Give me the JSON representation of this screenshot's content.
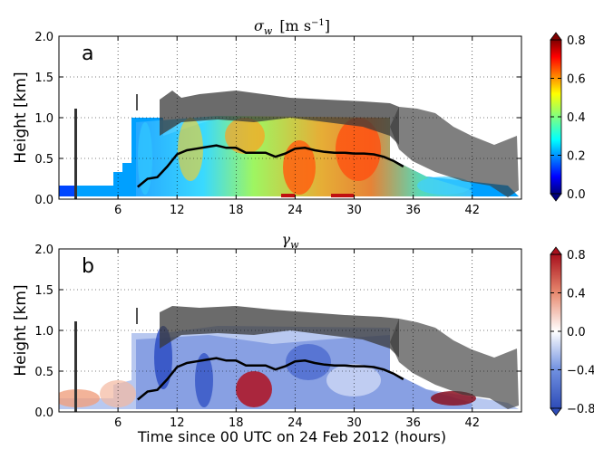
{
  "figure": {
    "xlabel": "Time since 00 UTC on 24 Feb 2012 (hours)"
  },
  "chart_data": [
    {
      "type": "heatmap",
      "panel_label": "a",
      "title_symbol": "σ",
      "title_sub": "w",
      "title_unit": "[m s",
      "title_unit_exp": "−1",
      "title_unit_close": "]",
      "xlabel": "",
      "ylabel": "Height [km]",
      "xlim": [
        0,
        47
      ],
      "ylim": [
        0,
        2
      ],
      "xticks": [
        6,
        12,
        18,
        24,
        30,
        36,
        42
      ],
      "yticks": [
        0.0,
        0.5,
        1.0,
        1.5,
        2.0
      ],
      "grid": true,
      "colormap": "jet",
      "colorbar": {
        "ticks": [
          "0.0",
          "0.2",
          "0.4",
          "0.6",
          "0.8"
        ],
        "range": [
          0,
          0.8
        ],
        "colors": [
          "#00007f",
          "#0000ff",
          "#0080ff",
          "#00ffff",
          "#80ff80",
          "#ffff00",
          "#ff8000",
          "#ff0000",
          "#7f0000"
        ]
      },
      "boundary_layer_height": {
        "x": [
          8,
          9,
          10,
          11,
          12,
          13,
          14,
          15,
          16,
          17,
          18,
          19,
          20,
          21,
          22,
          23,
          24,
          25,
          26,
          27,
          28,
          29,
          30,
          31,
          32,
          33,
          34,
          35
        ],
        "y": [
          0.15,
          0.25,
          0.27,
          0.4,
          0.55,
          0.6,
          0.62,
          0.64,
          0.66,
          0.63,
          0.63,
          0.57,
          0.57,
          0.57,
          0.52,
          0.56,
          0.62,
          0.63,
          0.6,
          0.58,
          0.57,
          0.57,
          0.56,
          0.56,
          0.55,
          0.52,
          0.47,
          0.4
        ]
      },
      "cloud_base": {
        "x": [
          10,
          12,
          14,
          16,
          18,
          20,
          22,
          24,
          26,
          28,
          30,
          32,
          34,
          36,
          38,
          40,
          42,
          44,
          46
        ],
        "y": [
          1.1,
          1.15,
          1.2,
          1.15,
          1.15,
          1.1,
          1.05,
          1.05,
          1.0,
          1.0,
          1.0,
          1.0,
          1.05,
          0.75,
          0.55,
          0.45,
          0.35,
          0.25,
          0.15
        ]
      }
    },
    {
      "type": "heatmap",
      "panel_label": "b",
      "title_symbol": "γ",
      "title_sub": "w",
      "xlabel": "Time since 00 UTC on 24 Feb 2012 (hours)",
      "ylabel": "Height [km]",
      "xlim": [
        0,
        47
      ],
      "ylim": [
        0,
        2
      ],
      "xticks": [
        6,
        12,
        18,
        24,
        30,
        36,
        42
      ],
      "yticks": [
        0.0,
        0.5,
        1.0,
        1.5,
        2.0
      ],
      "grid": true,
      "colormap": "RdBu_r",
      "colorbar": {
        "ticks": [
          "0.8",
          "0.4",
          "0.0",
          "−0.4",
          "−0.8"
        ],
        "range": [
          -0.8,
          0.8
        ],
        "colors": [
          "#2e4cb8",
          "#4a6fd8",
          "#9bb5f0",
          "#ffffff",
          "#f5b9a0",
          "#e0684f",
          "#a8101c"
        ]
      },
      "boundary_layer_height": {
        "x": [
          8,
          9,
          10,
          11,
          12,
          13,
          14,
          15,
          16,
          17,
          18,
          19,
          20,
          21,
          22,
          23,
          24,
          25,
          26,
          27,
          28,
          29,
          30,
          31,
          32,
          33,
          34,
          35
        ],
        "y": [
          0.15,
          0.25,
          0.27,
          0.4,
          0.55,
          0.6,
          0.62,
          0.64,
          0.66,
          0.63,
          0.63,
          0.57,
          0.57,
          0.57,
          0.52,
          0.56,
          0.62,
          0.63,
          0.6,
          0.58,
          0.57,
          0.57,
          0.56,
          0.56,
          0.55,
          0.52,
          0.47,
          0.4
        ]
      }
    }
  ]
}
